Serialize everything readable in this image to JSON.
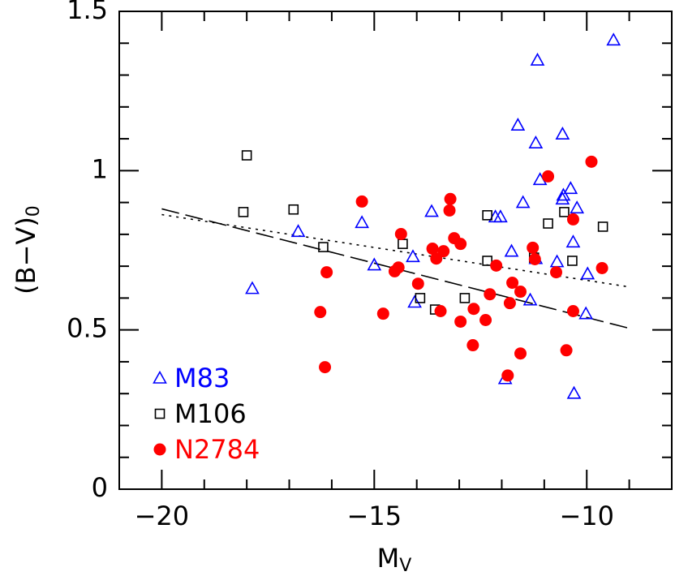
{
  "chart_data": {
    "type": "scatter",
    "xlabel": "M",
    "xlabel_sub": "V",
    "ylabel": "(B−V)",
    "ylabel_sub": "0",
    "xlim": [
      -21,
      -8
    ],
    "ylim": [
      0,
      1.5
    ],
    "xticks": [
      {
        "value": -20,
        "label": "−20"
      },
      {
        "value": -15,
        "label": "−15"
      },
      {
        "value": -10,
        "label": "−10"
      }
    ],
    "yticks": [
      0,
      0.5,
      1,
      1.5
    ],
    "xminorticks": [
      -21,
      -19,
      -18,
      -17,
      -16,
      -14,
      -13,
      -12,
      -11,
      -9,
      -8
    ],
    "yminorticks": [
      0.1,
      0.2,
      0.3,
      0.4,
      0.6,
      0.7,
      0.8,
      0.9,
      1.1,
      1.2,
      1.3,
      1.4
    ],
    "legend": "lower left",
    "series": [
      {
        "name": "M83",
        "color": "#0000ff",
        "marker": "triangle",
        "x": [
          -9.37,
          -11.16,
          -11.62,
          -10.57,
          -11.2,
          -11.1,
          -10.55,
          -10.57,
          -10.38,
          -11.5,
          -12.15,
          -12.03,
          -10.23,
          -15.29,
          -13.65,
          -16.79,
          -11.77,
          -14.09,
          -10.32,
          -10.7,
          -11.2,
          -9.98,
          -15.0,
          -17.87,
          -14.05,
          -11.33,
          -10.02,
          -11.92,
          -10.3
        ],
        "values": [
          1.41,
          1.347,
          1.143,
          1.115,
          1.087,
          0.972,
          0.923,
          0.911,
          0.944,
          0.9,
          0.855,
          0.855,
          0.883,
          0.837,
          0.872,
          0.809,
          0.747,
          0.73,
          0.776,
          0.714,
          0.724,
          0.676,
          0.704,
          0.63,
          0.587,
          0.594,
          0.551,
          0.347,
          0.301
        ]
      },
      {
        "name": "M106",
        "color": "#000000",
        "marker": "square",
        "x": [
          -18.0,
          -18.08,
          -16.9,
          -16.2,
          -14.33,
          -12.34,
          -10.53,
          -10.91,
          -9.62,
          -12.34,
          -11.24,
          -10.34,
          -13.92,
          -12.87,
          -13.57
        ],
        "values": [
          1.048,
          0.87,
          0.878,
          0.76,
          0.77,
          0.86,
          0.87,
          0.834,
          0.824,
          0.717,
          0.727,
          0.717,
          0.6,
          0.6,
          0.564
        ]
      },
      {
        "name": "N2784",
        "color": "#ff0000",
        "marker": "circle",
        "x": [
          -15.29,
          -13.21,
          -13.23,
          -9.89,
          -10.91,
          -10.32,
          -14.37,
          -13.12,
          -12.97,
          -13.63,
          -13.37,
          -13.54,
          -11.27,
          -12.13,
          -11.22,
          -16.12,
          -14.43,
          -14.52,
          -13.97,
          -10.72,
          -9.64,
          -11.75,
          -12.28,
          -11.56,
          -11.81,
          -16.27,
          -14.79,
          -13.44,
          -12.66,
          -12.97,
          -12.38,
          -10.32,
          -12.68,
          -11.56,
          -10.48,
          -11.86,
          -16.16
        ],
        "values": [
          0.903,
          0.911,
          0.875,
          1.028,
          0.982,
          0.847,
          0.801,
          0.788,
          0.77,
          0.755,
          0.747,
          0.724,
          0.758,
          0.702,
          0.722,
          0.681,
          0.696,
          0.684,
          0.645,
          0.681,
          0.694,
          0.648,
          0.612,
          0.62,
          0.584,
          0.556,
          0.551,
          0.559,
          0.566,
          0.526,
          0.531,
          0.559,
          0.452,
          0.426,
          0.436,
          0.357,
          0.383
        ]
      }
    ],
    "fit_lines": [
      {
        "style": "dashed",
        "color": "#000000",
        "x": [
          -20,
          -9
        ],
        "values": [
          0.88,
          0.505
        ]
      },
      {
        "style": "dotted",
        "color": "#000000",
        "x": [
          -20,
          -9
        ],
        "values": [
          0.862,
          0.635
        ]
      }
    ]
  }
}
